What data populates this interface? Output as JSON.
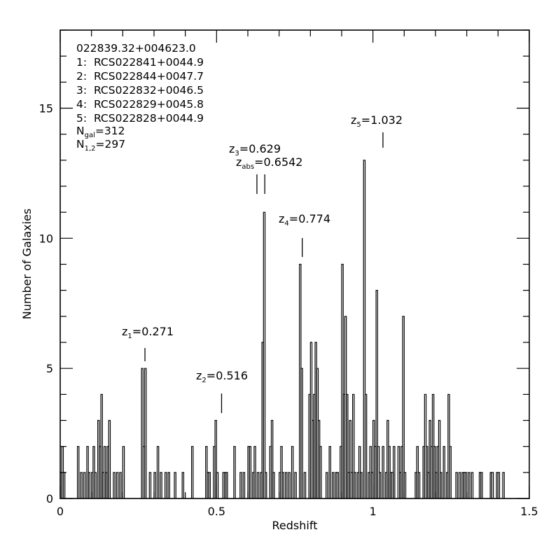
{
  "chart_data": {
    "type": "bar",
    "style": "step-histogram",
    "xlabel": "Redshift",
    "ylabel": "Number of Galaxies",
    "xlim": [
      0,
      1.5
    ],
    "ylim": [
      0,
      18
    ],
    "xticks": [
      "0",
      "0.5",
      "1",
      "1.5"
    ],
    "yticks": [
      "0",
      "5",
      "10",
      "15"
    ],
    "info": {
      "field": "022839.32+004623.0",
      "clusters": [
        "1:  RCS022841+0044.9",
        "2:  RCS022844+0047.7",
        "3:  RCS022832+0046.5",
        "4:  RCS022829+0045.8",
        "5:  RCS022828+0044.9"
      ],
      "ngal": {
        "main": "N",
        "sub": "gal",
        "value": "=312"
      },
      "n12": {
        "main": "N",
        "sub": "1,2",
        "value": "=297"
      }
    },
    "markers": [
      {
        "z": 0.271,
        "main": "z",
        "sub": "1",
        "value": "=0.271"
      },
      {
        "z": 0.516,
        "main": "z",
        "sub": "2",
        "value": "=0.516"
      },
      {
        "z": 0.629,
        "main": "z",
        "sub": "3",
        "value": "=0.629"
      },
      {
        "z": 0.6542,
        "main": "z",
        "sub": "abs",
        "value": "=0.6542"
      },
      {
        "z": 0.774,
        "main": "z",
        "sub": "4",
        "value": "=0.774"
      },
      {
        "z": 1.032,
        "main": "z",
        "sub": "5",
        "value": "=1.032"
      }
    ],
    "bin_width": 0.005,
    "bins": [
      [
        0.0,
        1
      ],
      [
        0.005,
        2
      ],
      [
        0.01,
        1
      ],
      [
        0.055,
        2
      ],
      [
        0.065,
        1
      ],
      [
        0.075,
        1
      ],
      [
        0.085,
        2
      ],
      [
        0.09,
        1
      ],
      [
        0.1,
        1
      ],
      [
        0.105,
        2
      ],
      [
        0.11,
        1
      ],
      [
        0.12,
        3
      ],
      [
        0.125,
        2
      ],
      [
        0.13,
        4
      ],
      [
        0.135,
        1
      ],
      [
        0.14,
        2
      ],
      [
        0.145,
        1
      ],
      [
        0.15,
        2
      ],
      [
        0.155,
        3
      ],
      [
        0.17,
        1
      ],
      [
        0.18,
        1
      ],
      [
        0.19,
        1
      ],
      [
        0.2,
        2
      ],
      [
        0.26,
        5
      ],
      [
        0.265,
        2
      ],
      [
        0.27,
        5
      ],
      [
        0.285,
        1
      ],
      [
        0.3,
        1
      ],
      [
        0.31,
        2
      ],
      [
        0.32,
        1
      ],
      [
        0.335,
        1
      ],
      [
        0.345,
        1
      ],
      [
        0.365,
        1
      ],
      [
        0.39,
        1
      ],
      [
        0.42,
        2
      ],
      [
        0.465,
        2
      ],
      [
        0.47,
        1
      ],
      [
        0.475,
        1
      ],
      [
        0.49,
        2
      ],
      [
        0.495,
        3
      ],
      [
        0.5,
        1
      ],
      [
        0.52,
        1
      ],
      [
        0.525,
        1
      ],
      [
        0.53,
        1
      ],
      [
        0.555,
        2
      ],
      [
        0.575,
        1
      ],
      [
        0.585,
        1
      ],
      [
        0.6,
        2
      ],
      [
        0.605,
        2
      ],
      [
        0.615,
        1
      ],
      [
        0.62,
        2
      ],
      [
        0.63,
        1
      ],
      [
        0.64,
        1
      ],
      [
        0.645,
        6
      ],
      [
        0.65,
        11
      ],
      [
        0.655,
        1
      ],
      [
        0.67,
        2
      ],
      [
        0.675,
        3
      ],
      [
        0.68,
        1
      ],
      [
        0.7,
        1
      ],
      [
        0.705,
        2
      ],
      [
        0.71,
        1
      ],
      [
        0.72,
        1
      ],
      [
        0.73,
        1
      ],
      [
        0.74,
        2
      ],
      [
        0.75,
        1
      ],
      [
        0.765,
        9
      ],
      [
        0.77,
        5
      ],
      [
        0.78,
        1
      ],
      [
        0.795,
        4
      ],
      [
        0.8,
        6
      ],
      [
        0.805,
        3
      ],
      [
        0.81,
        4
      ],
      [
        0.815,
        6
      ],
      [
        0.82,
        5
      ],
      [
        0.825,
        3
      ],
      [
        0.83,
        2
      ],
      [
        0.85,
        1
      ],
      [
        0.86,
        2
      ],
      [
        0.87,
        1
      ],
      [
        0.88,
        1
      ],
      [
        0.885,
        1
      ],
      [
        0.895,
        2
      ],
      [
        0.9,
        9
      ],
      [
        0.905,
        4
      ],
      [
        0.91,
        7
      ],
      [
        0.915,
        4
      ],
      [
        0.92,
        1
      ],
      [
        0.925,
        3
      ],
      [
        0.93,
        1
      ],
      [
        0.935,
        4
      ],
      [
        0.94,
        1
      ],
      [
        0.95,
        1
      ],
      [
        0.955,
        2
      ],
      [
        0.96,
        1
      ],
      [
        0.97,
        13
      ],
      [
        0.975,
        4
      ],
      [
        0.985,
        1
      ],
      [
        0.99,
        2
      ],
      [
        0.995,
        1
      ],
      [
        1.0,
        3
      ],
      [
        1.005,
        2
      ],
      [
        1.01,
        8
      ],
      [
        1.015,
        2
      ],
      [
        1.02,
        1
      ],
      [
        1.03,
        2
      ],
      [
        1.04,
        1
      ],
      [
        1.045,
        3
      ],
      [
        1.05,
        2
      ],
      [
        1.055,
        1
      ],
      [
        1.06,
        1
      ],
      [
        1.065,
        2
      ],
      [
        1.08,
        2
      ],
      [
        1.085,
        1
      ],
      [
        1.09,
        2
      ],
      [
        1.095,
        7
      ],
      [
        1.1,
        1
      ],
      [
        1.135,
        1
      ],
      [
        1.14,
        2
      ],
      [
        1.145,
        1
      ],
      [
        1.16,
        2
      ],
      [
        1.165,
        4
      ],
      [
        1.17,
        2
      ],
      [
        1.175,
        1
      ],
      [
        1.18,
        3
      ],
      [
        1.185,
        2
      ],
      [
        1.19,
        4
      ],
      [
        1.195,
        2
      ],
      [
        1.2,
        1
      ],
      [
        1.205,
        2
      ],
      [
        1.21,
        3
      ],
      [
        1.215,
        1
      ],
      [
        1.225,
        2
      ],
      [
        1.235,
        1
      ],
      [
        1.24,
        4
      ],
      [
        1.245,
        2
      ],
      [
        1.265,
        1
      ],
      [
        1.275,
        1
      ],
      [
        1.285,
        1
      ],
      [
        1.29,
        1
      ],
      [
        1.295,
        1
      ],
      [
        1.305,
        1
      ],
      [
        1.315,
        1
      ],
      [
        1.34,
        1
      ],
      [
        1.345,
        1
      ],
      [
        1.375,
        1
      ],
      [
        1.38,
        1
      ],
      [
        1.395,
        1
      ],
      [
        1.4,
        1
      ],
      [
        1.415,
        1
      ]
    ]
  }
}
